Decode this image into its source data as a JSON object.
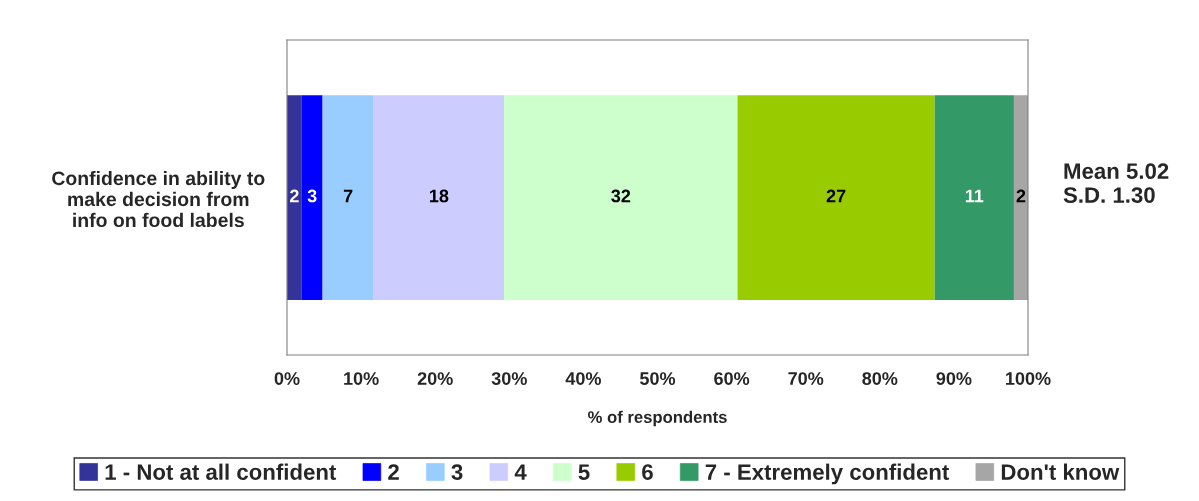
{
  "chart_data": {
    "type": "bar",
    "orientation": "horizontal",
    "stacked": true,
    "categories": [
      "Confidence in ability to\nmake decision from\ninfo on food labels"
    ],
    "series": [
      {
        "name": "1 - Not at all confident",
        "color": "#333399",
        "values": [
          2.0
        ],
        "value_labels": [
          "2"
        ]
      },
      {
        "name": "2",
        "color": "#0000ff",
        "values": [
          2.8
        ],
        "value_labels": [
          "3"
        ]
      },
      {
        "name": "3",
        "color": "#99ccff",
        "values": [
          6.9
        ],
        "value_labels": [
          "7"
        ]
      },
      {
        "name": "4",
        "color": "#ccccff",
        "values": [
          17.6
        ],
        "value_labels": [
          "18"
        ]
      },
      {
        "name": "5",
        "color": "#ccffcc",
        "values": [
          31.5
        ],
        "value_labels": [
          "32"
        ]
      },
      {
        "name": "6",
        "color": "#99cc00",
        "values": [
          26.6
        ],
        "value_labels": [
          "27"
        ]
      },
      {
        "name": "7 - Extremely confident",
        "color": "#339966",
        "values": [
          10.7
        ],
        "value_labels": [
          "11"
        ]
      },
      {
        "name": "Don't know",
        "color": "#a6a6a6",
        "values": [
          1.9
        ],
        "value_labels": [
          "2"
        ]
      }
    ],
    "xlim": [
      0,
      100
    ],
    "xticks": [
      {
        "value": 0,
        "label": "0%"
      },
      {
        "value": 10,
        "label": "10%"
      },
      {
        "value": 20,
        "label": "20%"
      },
      {
        "value": 30,
        "label": "30%"
      },
      {
        "value": 40,
        "label": "40%"
      },
      {
        "value": 50,
        "label": "50%"
      },
      {
        "value": 60,
        "label": "60%"
      },
      {
        "value": 70,
        "label": "70%"
      },
      {
        "value": 80,
        "label": "80%"
      },
      {
        "value": 90,
        "label": "90%"
      },
      {
        "value": 100,
        "label": "100%"
      }
    ],
    "xlabel": "% of respondents",
    "annotations": [
      "Mean 5.02\nS.D. 1.30"
    ],
    "legend": "bottom",
    "grid": false
  }
}
